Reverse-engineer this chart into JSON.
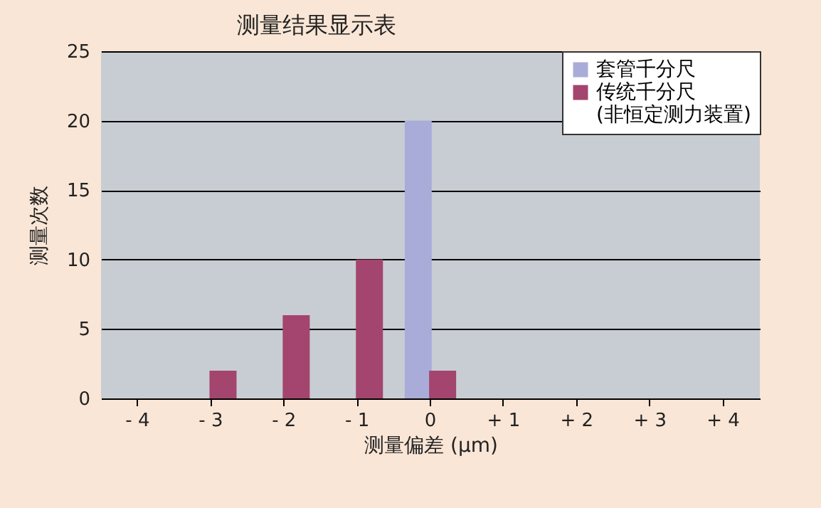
{
  "chart_data": {
    "type": "bar",
    "title": "测量结果显示表",
    "xlabel": "测量偏差 (μm)",
    "ylabel": "测量次数",
    "categories": [
      "- 4",
      "- 3",
      "- 2",
      "- 1",
      "0",
      "+ 1",
      "+ 2",
      "+ 3",
      "+ 4"
    ],
    "series": [
      {
        "name": "套管千分尺",
        "color": "#a9acd8",
        "values": [
          0,
          0,
          0,
          0,
          20,
          0,
          0,
          0,
          0
        ]
      },
      {
        "name": "传统千分尺\n(非恒定测力装置)",
        "color": "#a3456e",
        "values": [
          0,
          2,
          6,
          10,
          2,
          0,
          0,
          0,
          0
        ]
      }
    ],
    "ylim": [
      0,
      25
    ],
    "yticks": [
      0,
      5,
      10,
      15,
      20,
      25
    ],
    "grid": "y",
    "legend": "top right"
  }
}
